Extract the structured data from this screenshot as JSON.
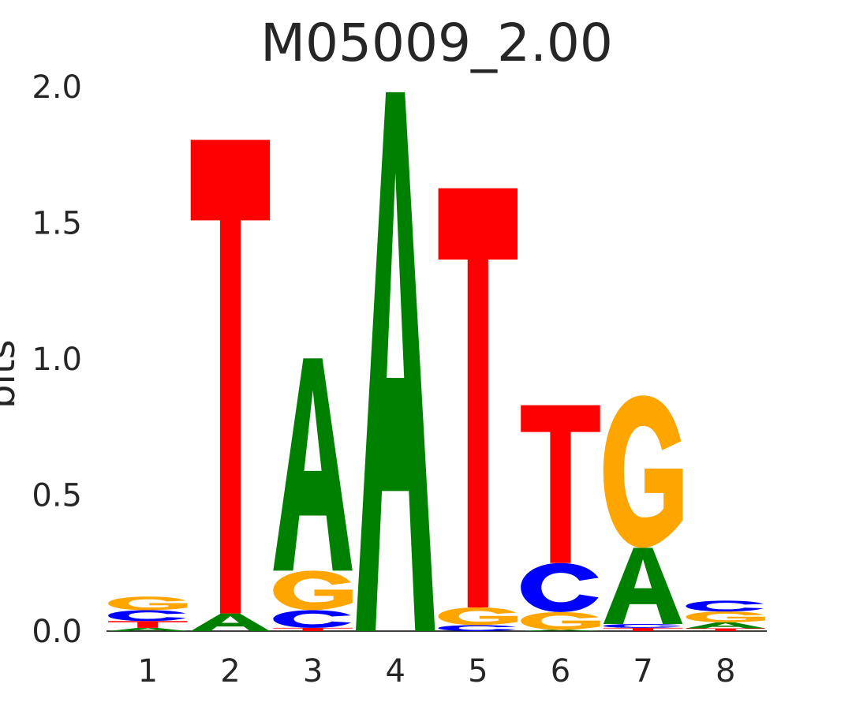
{
  "chart_data": {
    "type": "sequence-logo",
    "title": "M05009_2.00",
    "ylabel": "bits",
    "ylim": [
      0,
      2.0
    ],
    "yticks": [
      "0.0",
      "0.5",
      "1.0",
      "1.5",
      "2.0"
    ],
    "positions": [
      "1",
      "2",
      "3",
      "4",
      "5",
      "6",
      "7",
      "8"
    ],
    "colors": {
      "A": "#008000",
      "C": "#0000ff",
      "G": "#ffa500",
      "T": "#ff0000"
    },
    "stacks": [
      [
        {
          "letter": "A",
          "bits": 0.012
        },
        {
          "letter": "T",
          "bits": 0.025
        },
        {
          "letter": "C",
          "bits": 0.04
        },
        {
          "letter": "G",
          "bits": 0.05
        }
      ],
      [
        {
          "letter": "A",
          "bits": 0.065
        },
        {
          "letter": "T",
          "bits": 1.74
        }
      ],
      [
        {
          "letter": "T",
          "bits": 0.012
        },
        {
          "letter": "C",
          "bits": 0.065
        },
        {
          "letter": "G",
          "bits": 0.145
        },
        {
          "letter": "A",
          "bits": 0.78
        }
      ],
      [
        {
          "letter": "A",
          "bits": 1.98
        }
      ],
      [
        {
          "letter": "C",
          "bits": 0.022
        },
        {
          "letter": "G",
          "bits": 0.065
        },
        {
          "letter": "T",
          "bits": 1.54
        }
      ],
      [
        {
          "letter": "A",
          "bits": 0.005
        },
        {
          "letter": "G",
          "bits": 0.065
        },
        {
          "letter": "C",
          "bits": 0.18
        },
        {
          "letter": "T",
          "bits": 0.58
        }
      ],
      [
        {
          "letter": "T",
          "bits": 0.012
        },
        {
          "letter": "C",
          "bits": 0.014
        },
        {
          "letter": "A",
          "bits": 0.28
        },
        {
          "letter": "G",
          "bits": 0.56
        }
      ],
      [
        {
          "letter": "T",
          "bits": 0.01
        },
        {
          "letter": "A",
          "bits": 0.022
        },
        {
          "letter": "G",
          "bits": 0.04
        },
        {
          "letter": "C",
          "bits": 0.04
        }
      ]
    ]
  }
}
